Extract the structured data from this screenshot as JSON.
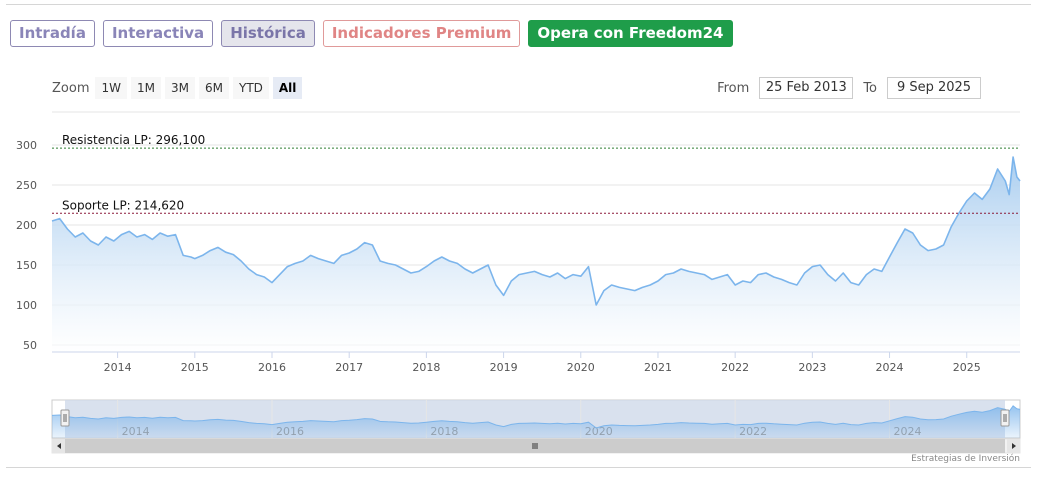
{
  "tabs": [
    {
      "label": "Intradía",
      "state": "normal"
    },
    {
      "label": "Interactiva",
      "state": "normal"
    },
    {
      "label": "Histórica",
      "state": "active"
    },
    {
      "label": "Indicadores Premium",
      "state": "premium"
    },
    {
      "label": "Opera con Freedom24",
      "state": "cta"
    }
  ],
  "zoom": {
    "label": "Zoom",
    "buttons": [
      "1W",
      "1M",
      "3M",
      "6M",
      "YTD",
      "All"
    ],
    "selected": "All"
  },
  "range": {
    "from_label": "From",
    "from_value": "25 Feb 2013",
    "to_label": "To",
    "to_value": "9 Sep 2025"
  },
  "credit": "Estrategias de Inversión",
  "colors": {
    "line": "#7cb5ec",
    "fill_top": "#a9cdef",
    "resistance": "#2e7d32",
    "support": "#8b1a3a",
    "navigator_mask": "#cfd9ea"
  },
  "chart_data": {
    "type": "area",
    "x_start": 2013.15,
    "x_end": 2025.69,
    "ylim": [
      50,
      300
    ],
    "y_ticks": [
      50,
      100,
      150,
      200,
      250,
      300
    ],
    "x_ticks": [
      "2014",
      "2015",
      "2016",
      "2017",
      "2018",
      "2019",
      "2020",
      "2021",
      "2022",
      "2023",
      "2024",
      "2025"
    ],
    "navigator_ticks": [
      "2014",
      "2016",
      "2018",
      "2020",
      "2022",
      "2024"
    ],
    "annotations": [
      {
        "label": "Resistencia LP: 296,100",
        "value": 296.1,
        "style": "resistance"
      },
      {
        "label": "Soporte LP: 214,620",
        "value": 214.62,
        "style": "support"
      }
    ],
    "series": [
      {
        "x": [
          2013.15,
          2013.25,
          2013.35,
          2013.45,
          2013.55,
          2013.65,
          2013.75,
          2013.85,
          2013.95,
          2014.05,
          2014.15,
          2014.25,
          2014.35,
          2014.45,
          2014.55,
          2014.65,
          2014.75,
          2014.85,
          2014.95,
          2015.0,
          2015.1,
          2015.2,
          2015.3,
          2015.4,
          2015.5,
          2015.6,
          2015.7,
          2015.8,
          2015.9,
          2016.0,
          2016.1,
          2016.2,
          2016.3,
          2016.4,
          2016.5,
          2016.6,
          2016.7,
          2016.8,
          2016.9,
          2017.0,
          2017.1,
          2017.2,
          2017.3,
          2017.4,
          2017.5,
          2017.6,
          2017.7,
          2017.8,
          2017.9,
          2018.0,
          2018.1,
          2018.2,
          2018.3,
          2018.4,
          2018.5,
          2018.6,
          2018.7,
          2018.8,
          2018.9,
          2019.0,
          2019.1,
          2019.2,
          2019.3,
          2019.4,
          2019.5,
          2019.6,
          2019.7,
          2019.8,
          2019.9,
          2020.0,
          2020.1,
          2020.2,
          2020.3,
          2020.4,
          2020.5,
          2020.6,
          2020.7,
          2020.8,
          2020.9,
          2021.0,
          2021.1,
          2021.2,
          2021.3,
          2021.4,
          2021.5,
          2021.6,
          2021.7,
          2021.8,
          2021.9,
          2022.0,
          2022.1,
          2022.2,
          2022.3,
          2022.4,
          2022.5,
          2022.6,
          2022.7,
          2022.8,
          2022.9,
          2023.0,
          2023.1,
          2023.2,
          2023.3,
          2023.4,
          2023.5,
          2023.6,
          2023.7,
          2023.8,
          2023.9,
          2024.0,
          2024.1,
          2024.2,
          2024.3,
          2024.4,
          2024.5,
          2024.6,
          2024.7,
          2024.8,
          2024.9,
          2025.0,
          2025.1,
          2025.2,
          2025.3,
          2025.4,
          2025.5,
          2025.55,
          2025.6,
          2025.65,
          2025.69
        ],
        "values": [
          205,
          208,
          195,
          185,
          190,
          180,
          175,
          185,
          180,
          188,
          192,
          185,
          188,
          182,
          190,
          186,
          188,
          162,
          160,
          158,
          162,
          168,
          172,
          166,
          163,
          155,
          145,
          138,
          135,
          128,
          138,
          148,
          152,
          155,
          162,
          158,
          155,
          152,
          162,
          165,
          170,
          178,
          175,
          155,
          152,
          150,
          145,
          140,
          142,
          148,
          155,
          160,
          155,
          152,
          145,
          140,
          145,
          150,
          125,
          112,
          130,
          138,
          140,
          142,
          138,
          135,
          140,
          133,
          138,
          136,
          148,
          100,
          118,
          125,
          122,
          120,
          118,
          122,
          125,
          130,
          138,
          140,
          145,
          142,
          140,
          138,
          132,
          135,
          138,
          125,
          130,
          128,
          138,
          140,
          135,
          132,
          128,
          125,
          140,
          148,
          150,
          138,
          130,
          140,
          128,
          125,
          138,
          145,
          142,
          160,
          178,
          195,
          190,
          175,
          168,
          170,
          175,
          198,
          215,
          230,
          240,
          232,
          245,
          270,
          255,
          238,
          285,
          260,
          255
        ]
      }
    ]
  }
}
